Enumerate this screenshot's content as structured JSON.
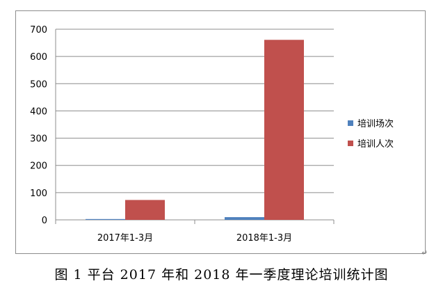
{
  "caption": "图 1  平台 2017 年和 2018 年一季度理论培训统计图",
  "return_mark": "↵",
  "colors": {
    "series1": "#4f81bd",
    "series2": "#c0504d",
    "grid": "#8c8c8c"
  },
  "chart_data": {
    "type": "bar",
    "categories": [
      "2017年1-3月",
      "2018年1-3月"
    ],
    "series": [
      {
        "name": "培训场次",
        "values": [
          3,
          10
        ]
      },
      {
        "name": "培训人次",
        "values": [
          73,
          661
        ]
      }
    ],
    "ylim": [
      0,
      700
    ],
    "yticks": [
      0,
      100,
      200,
      300,
      400,
      500,
      600,
      700
    ],
    "grid": true,
    "legend": "right"
  }
}
